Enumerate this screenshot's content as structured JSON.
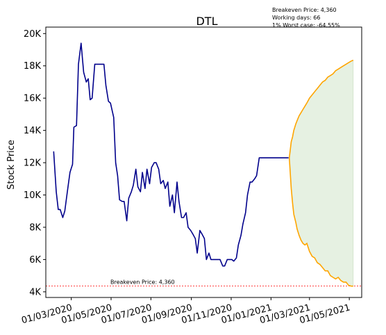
{
  "chart_data": {
    "type": "line",
    "title": "DTL",
    "xlabel": "",
    "ylabel": "Stock Price",
    "x_ticks": [
      "01/03/2020",
      "01/05/2020",
      "01/07/2020",
      "01/09/2020",
      "01/11/2020",
      "01/01/2021",
      "01/03/2021",
      "01/05/2021"
    ],
    "y_ticks": [
      "4K",
      "6K",
      "8K",
      "10K",
      "12K",
      "14K",
      "16K",
      "18K",
      "20K"
    ],
    "y_tick_values": [
      4000,
      6000,
      8000,
      10000,
      12000,
      14000,
      16000,
      18000,
      20000
    ],
    "xlim": [
      "2020-01-22",
      "2021-05-20"
    ],
    "ylim": [
      3650,
      20400
    ],
    "grid": false,
    "annotation_box": [
      "Breakeven Price: 4,360",
      "Working days: 66",
      "1% Worst case: -64.55%"
    ],
    "breakeven": {
      "label": "Breakeven Price: 4,360",
      "value": 4360,
      "color": "#ff0000"
    },
    "colors": {
      "price": "#00008b",
      "bounds": "#ffa500",
      "fill": "#e3f0df"
    },
    "series": [
      {
        "key": "price",
        "x": [
          "2020-02-03",
          "2020-02-07",
          "2020-02-10",
          "2020-02-13",
          "2020-02-17",
          "2020-02-20",
          "2020-02-24",
          "2020-02-28",
          "2020-03-03",
          "2020-03-05",
          "2020-03-09",
          "2020-03-12",
          "2020-03-16",
          "2020-03-20",
          "2020-03-24",
          "2020-03-27",
          "2020-03-30",
          "2020-04-02",
          "2020-04-06",
          "2020-04-09",
          "2020-04-13",
          "2020-04-16",
          "2020-04-20",
          "2020-04-23",
          "2020-04-27",
          "2020-04-30",
          "2020-05-05",
          "2020-05-08",
          "2020-05-11",
          "2020-05-14",
          "2020-05-18",
          "2020-05-21",
          "2020-05-25",
          "2020-05-28",
          "2020-06-01",
          "2020-06-04",
          "2020-06-08",
          "2020-06-11",
          "2020-06-15",
          "2020-06-18",
          "2020-06-22",
          "2020-06-25",
          "2020-06-29",
          "2020-07-02",
          "2020-07-06",
          "2020-07-09",
          "2020-07-13",
          "2020-07-16",
          "2020-07-20",
          "2020-07-23",
          "2020-07-27",
          "2020-07-30",
          "2020-08-03",
          "2020-08-06",
          "2020-08-10",
          "2020-08-13",
          "2020-08-17",
          "2020-08-20",
          "2020-08-24",
          "2020-08-27",
          "2020-08-31",
          "2020-09-03",
          "2020-09-07",
          "2020-09-10",
          "2020-09-14",
          "2020-09-17",
          "2020-09-21",
          "2020-09-24",
          "2020-09-28",
          "2020-10-01",
          "2020-10-05",
          "2020-10-08",
          "2020-10-12",
          "2020-10-15",
          "2020-10-19",
          "2020-10-22",
          "2020-10-26",
          "2020-10-29",
          "2020-11-02",
          "2020-11-05",
          "2020-11-09",
          "2020-11-12",
          "2020-11-16",
          "2020-11-19",
          "2020-11-23",
          "2020-11-26",
          "2020-11-30",
          "2020-12-03",
          "2020-12-07",
          "2020-12-10",
          "2020-12-14",
          "2020-12-17",
          "2020-12-21",
          "2020-12-24",
          "2020-12-28",
          "2021-01-04",
          "2021-01-08",
          "2021-01-12",
          "2021-01-19",
          "2021-01-28"
        ],
        "y": [
          12700,
          10200,
          9100,
          9100,
          8600,
          9000,
          10200,
          11400,
          11900,
          14200,
          14300,
          18100,
          19400,
          17600,
          17000,
          17200,
          15900,
          16000,
          18100,
          18100,
          18100,
          18100,
          18100,
          16800,
          15800,
          15700,
          14800,
          12000,
          11200,
          9700,
          9600,
          9600,
          8400,
          9800,
          10200,
          10600,
          11600,
          10500,
          10200,
          11400,
          10400,
          11600,
          10700,
          11700,
          12000,
          12000,
          11600,
          10700,
          10900,
          10400,
          10800,
          9300,
          10000,
          8900,
          10800,
          9600,
          8600,
          8600,
          8900,
          8000,
          7800,
          7600,
          7300,
          6400,
          7800,
          7600,
          7300,
          6000,
          6400,
          6000,
          6000,
          6000,
          6000,
          6000,
          5600,
          5600,
          6000,
          6000,
          6000,
          5900,
          6100,
          6900,
          7500,
          8200,
          8900,
          10000,
          10800,
          10800,
          11000,
          11200,
          12300,
          12300,
          12300,
          12300,
          12300,
          12300,
          12300,
          12300,
          12300,
          12300
        ]
      },
      {
        "key": "upper",
        "x": [
          "2021-01-29",
          "2021-02-01",
          "2021-02-03",
          "2021-02-05",
          "2021-02-08",
          "2021-02-10",
          "2021-02-13",
          "2021-02-16",
          "2021-02-19",
          "2021-02-22",
          "2021-02-25",
          "2021-03-01",
          "2021-03-05",
          "2021-03-09",
          "2021-03-13",
          "2021-03-17",
          "2021-03-21",
          "2021-03-25",
          "2021-03-29",
          "2021-04-02",
          "2021-04-06",
          "2021-04-10",
          "2021-04-14",
          "2021-04-18",
          "2021-04-22",
          "2021-04-26",
          "2021-04-30",
          "2021-05-04",
          "2021-05-07"
        ],
        "y": [
          12300,
          13300,
          13600,
          14000,
          14400,
          14600,
          14900,
          15100,
          15300,
          15500,
          15700,
          16000,
          16200,
          16400,
          16600,
          16800,
          17000,
          17100,
          17300,
          17400,
          17500,
          17700,
          17800,
          17900,
          18000,
          18100,
          18200,
          18300,
          18350
        ]
      },
      {
        "key": "lower",
        "x": [
          "2021-01-29",
          "2021-02-01",
          "2021-02-03",
          "2021-02-05",
          "2021-02-08",
          "2021-02-10",
          "2021-02-13",
          "2021-02-16",
          "2021-02-19",
          "2021-02-22",
          "2021-02-25",
          "2021-03-01",
          "2021-03-05",
          "2021-03-09",
          "2021-03-13",
          "2021-03-17",
          "2021-03-21",
          "2021-03-25",
          "2021-03-29",
          "2021-04-02",
          "2021-04-06",
          "2021-04-10",
          "2021-04-14",
          "2021-04-18",
          "2021-04-22",
          "2021-04-26",
          "2021-04-30",
          "2021-05-04",
          "2021-05-07"
        ],
        "y": [
          12300,
          10400,
          9500,
          8800,
          8300,
          7900,
          7500,
          7200,
          7000,
          6900,
          7000,
          6500,
          6200,
          6100,
          5800,
          5700,
          5500,
          5300,
          5300,
          5000,
          4900,
          4800,
          4900,
          4700,
          4600,
          4600,
          4400,
          4350,
          4350
        ]
      }
    ]
  }
}
